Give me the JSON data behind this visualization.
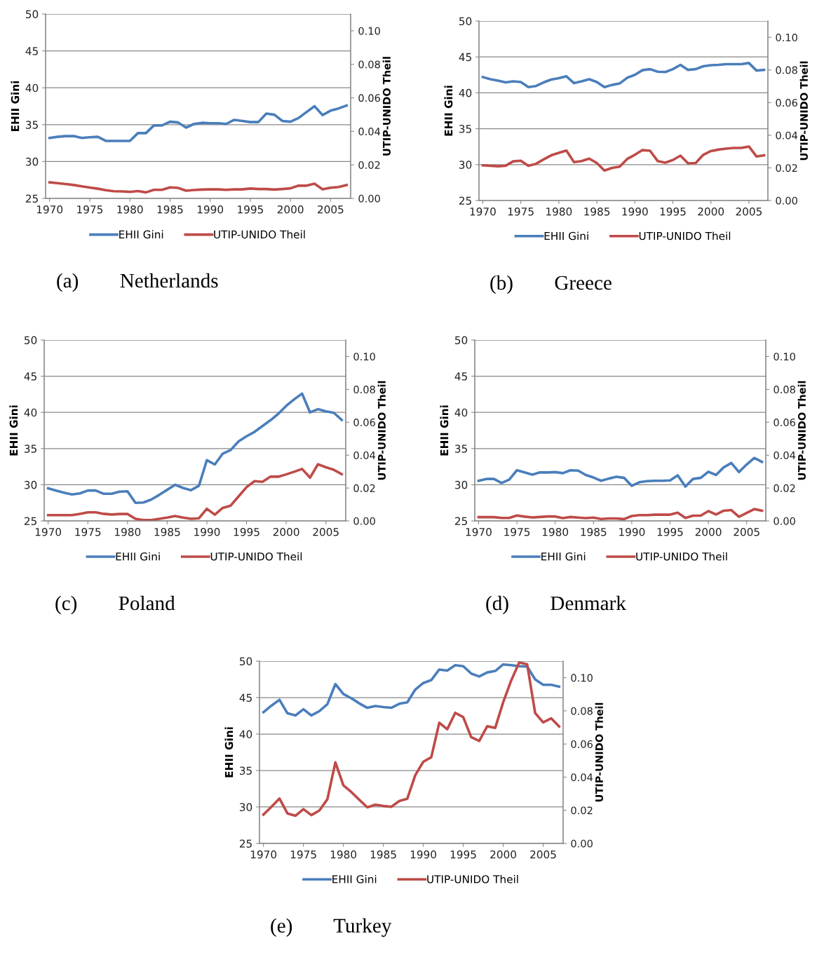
{
  "chart_data": [
    {
      "type": "line",
      "ylabel": "EHII Gini",
      "y2label": "UTIP-UNIDO Theil",
      "annotations": [
        "(a)        Netherlands"
      ],
      "legend": "bottom",
      "grid": "y",
      "xlim": [
        1969.5,
        2007.5
      ],
      "xticks": [
        1970,
        1975,
        1980,
        1985,
        1990,
        1995,
        2000,
        2005
      ],
      "ylim": [
        25,
        50
      ],
      "yticks": [
        25,
        30,
        35,
        40,
        45,
        50
      ],
      "y2lim": [
        0,
        0.11
      ],
      "y2ticks": [
        {
          "value": 0,
          "label": "0.00"
        },
        {
          "value": 0.02,
          "label": "0.02"
        },
        {
          "value": 0.04,
          "label": "0.04"
        },
        {
          "value": 0.06,
          "label": "0.06"
        },
        {
          "value": 0.08,
          "label": "0.08"
        },
        {
          "value": 0.1,
          "label": "0.10"
        }
      ],
      "x": [
        1970,
        1971,
        1972,
        1973,
        1974,
        1975,
        1976,
        1977,
        1978,
        1979,
        1980,
        1981,
        1982,
        1983,
        1984,
        1985,
        1986,
        1987,
        1988,
        1989,
        1990,
        1991,
        1992,
        1993,
        1994,
        1995,
        1996,
        1997,
        1998,
        1999,
        2000,
        2001,
        2002,
        2003,
        2004,
        2005,
        2006,
        2007
      ],
      "series": [
        {
          "name": "EHII Gini",
          "color": "#4a7ebb",
          "values": [
            33.2,
            33.35,
            33.45,
            33.45,
            33.2,
            33.3,
            33.35,
            32.8,
            32.8,
            32.8,
            32.8,
            33.85,
            33.85,
            34.9,
            34.9,
            35.4,
            35.3,
            34.6,
            35.1,
            35.25,
            35.2,
            35.2,
            35.1,
            35.65,
            35.5,
            35.35,
            35.35,
            36.5,
            36.35,
            35.5,
            35.4,
            35.9,
            36.7,
            37.5,
            36.3,
            36.9,
            37.2,
            37.6
          ]
        },
        {
          "name": "UTIP-UNIDO Theil",
          "color": "#be4b48",
          "axis": "y2",
          "values": [
            0.0096,
            0.0091,
            0.0086,
            0.008,
            0.0072,
            0.0065,
            0.0058,
            0.0049,
            0.0043,
            0.0042,
            0.0039,
            0.0044,
            0.0036,
            0.0051,
            0.0051,
            0.0066,
            0.0063,
            0.0046,
            0.005,
            0.0053,
            0.0054,
            0.0054,
            0.0051,
            0.0054,
            0.0054,
            0.0059,
            0.0056,
            0.0056,
            0.0053,
            0.0056,
            0.006,
            0.0076,
            0.0076,
            0.0088,
            0.0054,
            0.0064,
            0.0068,
            0.008
          ]
        }
      ]
    },
    {
      "type": "line",
      "ylabel": "EHII Gini",
      "y2label": "UTIP-UNIDO Theil",
      "annotations": [
        "(b)        Greece"
      ],
      "legend": "bottom",
      "grid": "y",
      "xlim": [
        1969.5,
        2007.5
      ],
      "xticks": [
        1970,
        1975,
        1980,
        1985,
        1990,
        1995,
        2000,
        2005
      ],
      "ylim": [
        25,
        50
      ],
      "yticks": [
        25,
        30,
        35,
        40,
        45,
        50
      ],
      "y2lim": [
        0,
        0.11
      ],
      "y2ticks": [
        {
          "value": 0,
          "label": "0.00"
        },
        {
          "value": 0.02,
          "label": "0.02"
        },
        {
          "value": 0.04,
          "label": "0.04"
        },
        {
          "value": 0.06,
          "label": "0.06"
        },
        {
          "value": 0.08,
          "label": "0.08"
        },
        {
          "value": 0.1,
          "label": "0.10"
        }
      ],
      "x": [
        1970,
        1971,
        1972,
        1973,
        1974,
        1975,
        1976,
        1977,
        1978,
        1979,
        1980,
        1981,
        1982,
        1983,
        1984,
        1985,
        1986,
        1987,
        1988,
        1989,
        1990,
        1991,
        1992,
        1993,
        1994,
        1995,
        1996,
        1997,
        1998,
        1999,
        2000,
        2001,
        2002,
        2003,
        2004,
        2005,
        2006,
        2007
      ],
      "series": [
        {
          "name": "EHII Gini",
          "color": "#4a7ebb",
          "values": [
            42.2,
            41.9,
            41.7,
            41.45,
            41.6,
            41.5,
            40.8,
            40.95,
            41.45,
            41.85,
            42.05,
            42.3,
            41.35,
            41.6,
            41.9,
            41.5,
            40.8,
            41.1,
            41.3,
            42.1,
            42.5,
            43.15,
            43.3,
            42.95,
            42.9,
            43.3,
            43.9,
            43.2,
            43.3,
            43.7,
            43.85,
            43.9,
            44.0,
            44.0,
            44.0,
            44.15,
            43.1,
            43.2
          ]
        },
        {
          "name": "UTIP-UNIDO Theil",
          "color": "#be4b48",
          "axis": "y2",
          "values": [
            0.0216,
            0.0213,
            0.021,
            0.0213,
            0.024,
            0.0244,
            0.0213,
            0.0225,
            0.0252,
            0.0277,
            0.0292,
            0.0306,
            0.0235,
            0.0242,
            0.0257,
            0.023,
            0.0184,
            0.02,
            0.0207,
            0.0255,
            0.028,
            0.0309,
            0.0305,
            0.0242,
            0.0232,
            0.0248,
            0.0275,
            0.0228,
            0.023,
            0.028,
            0.0303,
            0.0312,
            0.0318,
            0.0322,
            0.0322,
            0.0331,
            0.027,
            0.0277
          ]
        }
      ]
    },
    {
      "type": "line",
      "ylabel": "EHII Gini",
      "y2label": "UTIP-UNIDO Theil",
      "annotations": [
        "(c)        Poland"
      ],
      "legend": "bottom",
      "grid": "y",
      "xlim": [
        1969.5,
        2007.5
      ],
      "xticks": [
        1970,
        1975,
        1980,
        1985,
        1990,
        1995,
        2000,
        2005
      ],
      "ylim": [
        25,
        50
      ],
      "yticks": [
        25,
        30,
        35,
        40,
        45,
        50
      ],
      "y2lim": [
        0,
        0.11
      ],
      "y2ticks": [
        {
          "value": 0,
          "label": "0.00"
        },
        {
          "value": 0.02,
          "label": "0.02"
        },
        {
          "value": 0.04,
          "label": "0.04"
        },
        {
          "value": 0.06,
          "label": "0.06"
        },
        {
          "value": 0.08,
          "label": "0.08"
        },
        {
          "value": 0.1,
          "label": "0.10"
        }
      ],
      "x": [
        1970,
        1971,
        1972,
        1973,
        1974,
        1975,
        1976,
        1977,
        1978,
        1979,
        1980,
        1981,
        1982,
        1983,
        1984,
        1985,
        1986,
        1987,
        1988,
        1989,
        1990,
        1991,
        1992,
        1993,
        1994,
        1995,
        1996,
        1997,
        1998,
        1999,
        2000,
        2001,
        2002,
        2003,
        2004,
        2005,
        2006,
        2007
      ],
      "series": [
        {
          "name": "EHII Gini",
          "color": "#4a7ebb",
          "values": [
            29.5,
            29.2,
            28.9,
            28.65,
            28.8,
            29.2,
            29.2,
            28.75,
            28.75,
            29.05,
            29.1,
            27.5,
            27.55,
            27.95,
            28.6,
            29.3,
            30.0,
            29.55,
            29.25,
            29.85,
            33.4,
            32.8,
            34.3,
            34.8,
            36.0,
            36.7,
            37.3,
            38.1,
            38.9,
            39.8,
            40.9,
            41.8,
            42.6,
            40.0,
            40.45,
            40.15,
            39.95,
            38.95
          ]
        },
        {
          "name": "UTIP-UNIDO Theil",
          "color": "#be4b48",
          "axis": "y2",
          "values": [
            0.0035,
            0.0035,
            0.0035,
            0.0035,
            0.0043,
            0.0052,
            0.0052,
            0.0043,
            0.0039,
            0.0042,
            0.0042,
            0.0013,
            0.0005,
            0.0005,
            0.0013,
            0.002,
            0.003,
            0.002,
            0.0013,
            0.0016,
            0.0074,
            0.0038,
            0.0079,
            0.0093,
            0.0149,
            0.0205,
            0.0242,
            0.0238,
            0.0269,
            0.0269,
            0.0283,
            0.0299,
            0.0316,
            0.0263,
            0.0345,
            0.0326,
            0.0311,
            0.0284
          ]
        }
      ]
    },
    {
      "type": "line",
      "ylabel": "EHII Gini",
      "y2label": "UTIP-UNIDO Theil",
      "annotations": [
        "(d)        Denmark"
      ],
      "legend": "bottom",
      "grid": "y",
      "xlim": [
        1969.5,
        2007.5
      ],
      "xticks": [
        1970,
        1975,
        1980,
        1985,
        1990,
        1995,
        2000,
        2005
      ],
      "ylim": [
        25,
        50
      ],
      "yticks": [
        25,
        30,
        35,
        40,
        45,
        50
      ],
      "y2lim": [
        0,
        0.11
      ],
      "y2ticks": [
        {
          "value": 0,
          "label": "0.00"
        },
        {
          "value": 0.02,
          "label": "0.02"
        },
        {
          "value": 0.04,
          "label": "0.04"
        },
        {
          "value": 0.06,
          "label": "0.06"
        },
        {
          "value": 0.08,
          "label": "0.08"
        },
        {
          "value": 0.1,
          "label": "0.10"
        }
      ],
      "x": [
        1970,
        1971,
        1972,
        1973,
        1974,
        1975,
        1976,
        1977,
        1978,
        1979,
        1980,
        1981,
        1982,
        1983,
        1984,
        1985,
        1986,
        1987,
        1988,
        1989,
        1990,
        1991,
        1992,
        1993,
        1994,
        1995,
        1996,
        1997,
        1998,
        1999,
        2000,
        2001,
        2002,
        2003,
        2004,
        2005,
        2006,
        2007
      ],
      "series": [
        {
          "name": "EHII Gini",
          "color": "#4a7ebb",
          "values": [
            30.55,
            30.8,
            30.8,
            30.25,
            30.7,
            32.0,
            31.7,
            31.4,
            31.7,
            31.7,
            31.75,
            31.6,
            32.0,
            31.95,
            31.35,
            31.0,
            30.55,
            30.85,
            31.1,
            30.95,
            29.85,
            30.35,
            30.5,
            30.55,
            30.55,
            30.6,
            31.3,
            29.75,
            30.8,
            30.95,
            31.8,
            31.35,
            32.4,
            33.0,
            31.75,
            32.8,
            33.7,
            33.15
          ]
        },
        {
          "name": "UTIP-UNIDO Theil",
          "color": "#be4b48",
          "axis": "y2",
          "values": [
            0.0023,
            0.0023,
            0.0023,
            0.0018,
            0.0018,
            0.0033,
            0.0026,
            0.0021,
            0.0024,
            0.0027,
            0.0027,
            0.0017,
            0.0024,
            0.002,
            0.0017,
            0.002,
            0.0012,
            0.0015,
            0.0015,
            0.0011,
            0.003,
            0.0035,
            0.0035,
            0.0038,
            0.0038,
            0.0038,
            0.005,
            0.0018,
            0.0032,
            0.0032,
            0.006,
            0.0039,
            0.0062,
            0.0066,
            0.0025,
            0.0048,
            0.0072,
            0.0062
          ]
        }
      ]
    },
    {
      "type": "line",
      "ylabel": "EHII Gini",
      "y2label": "UTIP-UNIDO Theil",
      "annotations": [
        "(e)        Turkey"
      ],
      "legend": "bottom",
      "grid": "y",
      "xlim": [
        1969.5,
        2007.5
      ],
      "xticks": [
        1970,
        1975,
        1980,
        1985,
        1990,
        1995,
        2000,
        2005
      ],
      "ylim": [
        25,
        50
      ],
      "yticks": [
        25,
        30,
        35,
        40,
        45,
        50
      ],
      "y2lim": [
        0,
        0.11
      ],
      "y2ticks": [
        {
          "value": 0,
          "label": "0.00"
        },
        {
          "value": 0.02,
          "label": "0.02"
        },
        {
          "value": 0.04,
          "label": "0.04"
        },
        {
          "value": 0.06,
          "label": "0.06"
        },
        {
          "value": 0.08,
          "label": "0.08"
        },
        {
          "value": 0.1,
          "label": "0.10"
        }
      ],
      "x": [
        1970,
        1971,
        1972,
        1973,
        1974,
        1975,
        1976,
        1977,
        1978,
        1979,
        1980,
        1981,
        1982,
        1983,
        1984,
        1985,
        1986,
        1987,
        1988,
        1989,
        1990,
        1991,
        1992,
        1993,
        1994,
        1995,
        1996,
        1997,
        1998,
        1999,
        2000,
        2001,
        2002,
        2003,
        2004,
        2005,
        2006,
        2007
      ],
      "series": [
        {
          "name": "EHII Gini",
          "color": "#4a7ebb",
          "values": [
            43.0,
            43.9,
            44.7,
            42.85,
            42.55,
            43.4,
            42.55,
            43.15,
            44.1,
            46.85,
            45.5,
            44.9,
            44.2,
            43.6,
            43.85,
            43.7,
            43.6,
            44.15,
            44.35,
            46.1,
            47.0,
            47.4,
            48.85,
            48.7,
            49.45,
            49.3,
            48.3,
            47.9,
            48.45,
            48.65,
            49.55,
            49.45,
            49.3,
            49.25,
            47.5,
            46.75,
            46.75,
            46.5
          ]
        },
        {
          "name": "UTIP-UNIDO Theil",
          "color": "#be4b48",
          "axis": "y2",
          "values": [
            0.0174,
            0.0221,
            0.0271,
            0.0181,
            0.0167,
            0.0207,
            0.0171,
            0.0199,
            0.0267,
            0.0489,
            0.0351,
            0.031,
            0.0263,
            0.0218,
            0.0234,
            0.0226,
            0.0221,
            0.0256,
            0.027,
            0.0412,
            0.0493,
            0.052,
            0.0728,
            0.0689,
            0.0788,
            0.0762,
            0.0641,
            0.0618,
            0.0707,
            0.0697,
            0.0852,
            0.0983,
            0.1092,
            0.1081,
            0.0787,
            0.073,
            0.0755,
            0.0706
          ]
        }
      ]
    }
  ]
}
